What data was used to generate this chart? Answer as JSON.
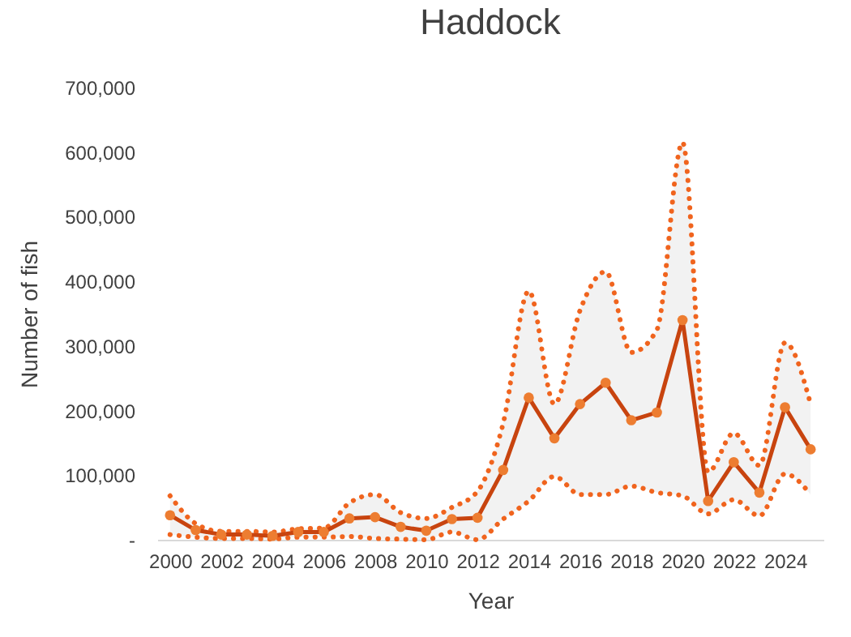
{
  "chart_data": {
    "type": "line",
    "title": "Haddock",
    "xlabel": "Year",
    "ylabel": "Number of fish",
    "x": [
      2000,
      2001,
      2002,
      2003,
      2004,
      2005,
      2006,
      2007,
      2008,
      2009,
      2010,
      2011,
      2012,
      2013,
      2014,
      2015,
      2016,
      2017,
      2018,
      2019,
      2020,
      2021,
      2022,
      2023,
      2024,
      2025
    ],
    "series": [
      {
        "color": "#c8440f",
        "values": [
          38000,
          15000,
          8000,
          8000,
          6000,
          12000,
          12000,
          33000,
          35000,
          20000,
          14000,
          32000,
          34000,
          108000,
          220000,
          157000,
          210000,
          243000,
          185000,
          197000,
          340000,
          60000,
          120000,
          73000,
          205000,
          140000
        ],
        "lower": [
          8000,
          4000,
          2000,
          2000,
          1000,
          4000,
          4000,
          5000,
          2000,
          1000,
          0,
          12000,
          0,
          32000,
          60000,
          98000,
          70000,
          70000,
          83000,
          73000,
          68000,
          40000,
          62000,
          37000,
          102000,
          70000
        ],
        "upper": [
          68000,
          25000,
          13000,
          13000,
          12000,
          17000,
          18000,
          57000,
          70000,
          42000,
          33000,
          50000,
          75000,
          180000,
          385000,
          210000,
          355000,
          415000,
          290000,
          325000,
          615000,
          105000,
          165000,
          115000,
          305000,
          210000
        ]
      },
      {
        "color": "#f0641e",
        "marker": "none",
        "line_style": "dotted",
        "values": [
          68000,
          25000,
          13000,
          13000,
          12000,
          17000,
          18000,
          57000,
          70000,
          42000,
          33000,
          50000,
          75000,
          180000,
          385000,
          210000,
          355000,
          415000,
          290000,
          325000,
          615000,
          105000,
          165000,
          115000,
          305000,
          210000
        ]
      },
      {
        "color": "#f0641e",
        "marker": "none",
        "line_style": "dotted",
        "values": [
          8000,
          4000,
          2000,
          2000,
          1000,
          4000,
          4000,
          5000,
          2000,
          1000,
          0,
          12000,
          0,
          32000,
          60000,
          98000,
          70000,
          70000,
          83000,
          73000,
          68000,
          40000,
          62000,
          37000,
          102000,
          70000
        ]
      }
    ],
    "xlim": [
      1999.5,
      2025.5
    ],
    "xticks": [
      2000,
      2002,
      2004,
      2006,
      2008,
      2010,
      2012,
      2014,
      2016,
      2018,
      2020,
      2022,
      2024
    ],
    "ylim": [
      0,
      700000
    ],
    "yticks": [
      {
        "value": 0,
        "label": "-"
      },
      {
        "value": 100000,
        "label": "100,000"
      },
      {
        "value": 200000,
        "label": "200,000"
      },
      {
        "value": 300000,
        "label": "300,000"
      },
      {
        "value": 400000,
        "label": "400,000"
      },
      {
        "value": 500000,
        "label": "500,000"
      },
      {
        "value": 600000,
        "label": "600,000"
      },
      {
        "value": 700000,
        "label": "700,000"
      }
    ],
    "grid": false,
    "marker": "circle",
    "line_style": "solid"
  }
}
